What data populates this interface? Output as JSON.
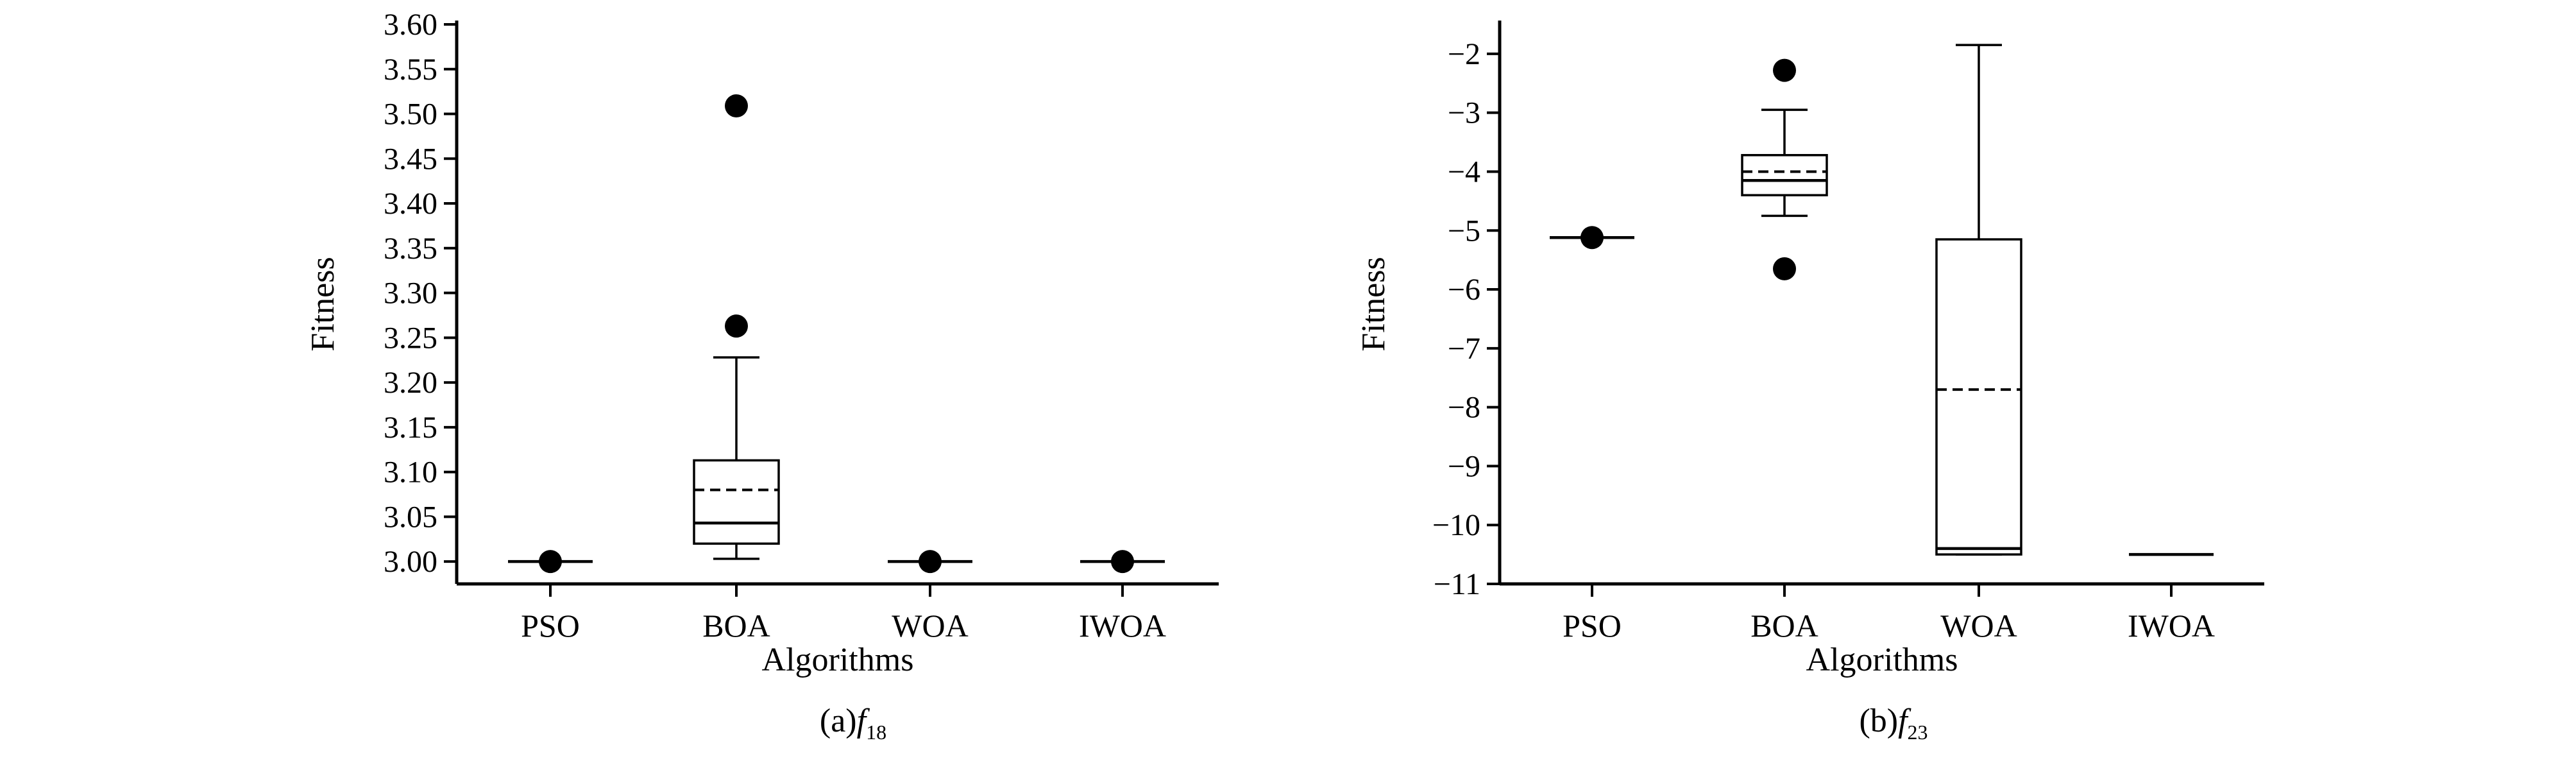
{
  "chart_data": [
    {
      "type": "box",
      "panel_caption": "(a)f",
      "caption_function": "f",
      "caption_subscript": "18",
      "xlabel": "Algorithms",
      "ylabel": "Fitness",
      "ylim": [
        2.975,
        3.6
      ],
      "yticks": [
        "3.00",
        "3.05",
        "3.10",
        "3.15",
        "3.20",
        "3.25",
        "3.30",
        "3.35",
        "3.40",
        "3.45",
        "3.50",
        "3.55",
        "3.60"
      ],
      "categories": [
        "PSO",
        "BOA",
        "WOA",
        "IWOA"
      ],
      "boxes": [
        {
          "name": "PSO",
          "whisker_low": 3.0,
          "q1": 3.0,
          "median": 3.0,
          "mean": 3.0,
          "q3": 3.0,
          "whisker_high": 3.0,
          "outliers": [
            3.0
          ]
        },
        {
          "name": "BOA",
          "whisker_low": 3.003,
          "q1": 3.02,
          "median": 3.043,
          "mean": 3.08,
          "q3": 3.113,
          "whisker_high": 3.228,
          "outliers": [
            3.509,
            3.263
          ]
        },
        {
          "name": "WOA",
          "whisker_low": 3.0,
          "q1": 3.0,
          "median": 3.0,
          "mean": 3.0,
          "q3": 3.0,
          "whisker_high": 3.0,
          "outliers": [
            3.0
          ]
        },
        {
          "name": "IWOA",
          "whisker_low": 3.0,
          "q1": 3.0,
          "median": 3.0,
          "mean": 3.0,
          "q3": 3.0,
          "whisker_high": 3.0,
          "outliers": [
            3.0
          ]
        }
      ]
    },
    {
      "type": "box",
      "panel_caption": "(b)f",
      "caption_function": "f",
      "caption_subscript": "23",
      "xlabel": "Algorithms",
      "ylabel": "Fitness",
      "ylim": [
        -11,
        -1.5
      ],
      "yticks": [
        "−2",
        "−3",
        "−4",
        "−5",
        "−6",
        "−7",
        "−8",
        "−9",
        "−10",
        "−11"
      ],
      "categories": [
        "PSO",
        "BOA",
        "WOA",
        "IWOA"
      ],
      "boxes": [
        {
          "name": "PSO",
          "whisker_low": -5.12,
          "q1": -5.12,
          "median": -5.12,
          "mean": -5.12,
          "q3": -5.12,
          "whisker_high": -5.12,
          "outliers": [
            -5.12
          ]
        },
        {
          "name": "BOA",
          "whisker_low": -4.75,
          "q1": -4.4,
          "median": -4.15,
          "mean": -4.0,
          "q3": -3.72,
          "whisker_high": -2.95,
          "outliers": [
            -2.28,
            -5.65
          ]
        },
        {
          "name": "WOA",
          "whisker_low": -10.5,
          "q1": -10.5,
          "median": -10.4,
          "mean": -7.7,
          "q3": -5.15,
          "whisker_high": -1.85,
          "outliers": []
        },
        {
          "name": "IWOA",
          "whisker_low": -10.5,
          "q1": -10.5,
          "median": -10.5,
          "mean": -10.5,
          "q3": -10.5,
          "whisker_high": -10.5,
          "outliers": []
        }
      ]
    }
  ]
}
